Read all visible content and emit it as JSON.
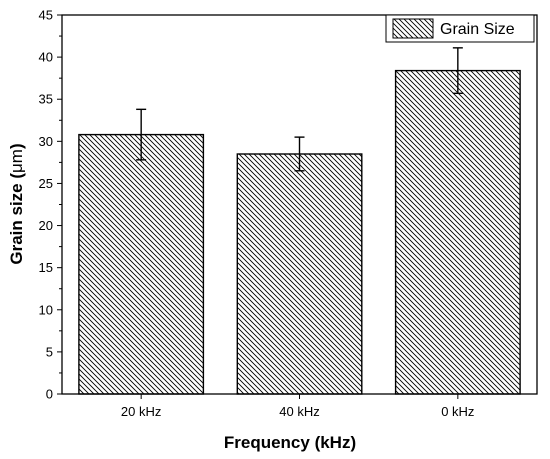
{
  "chart_data": {
    "type": "bar",
    "categories": [
      "20 kHz",
      "40 kHz",
      "0 kHz"
    ],
    "series": [
      {
        "name": "Grain Size",
        "values": [
          30.8,
          28.5,
          38.4
        ],
        "errors": [
          3.0,
          2.0,
          2.7
        ]
      }
    ],
    "xlabel": "Frequency (kHz)",
    "ylabel_prefix": "Grain size (",
    "ylabel_unit": "μm",
    "ylabel_suffix": ")",
    "ylim": [
      0,
      45
    ],
    "yticks": [
      "0",
      "5",
      "10",
      "15",
      "20",
      "25",
      "30",
      "35",
      "40",
      "45"
    ],
    "grid": false,
    "legend_position": "top-right",
    "bar_fill": "diagonal-hatch",
    "colors": {
      "stroke": "#000000",
      "fill": "#ffffff",
      "frame": "#000000"
    }
  }
}
